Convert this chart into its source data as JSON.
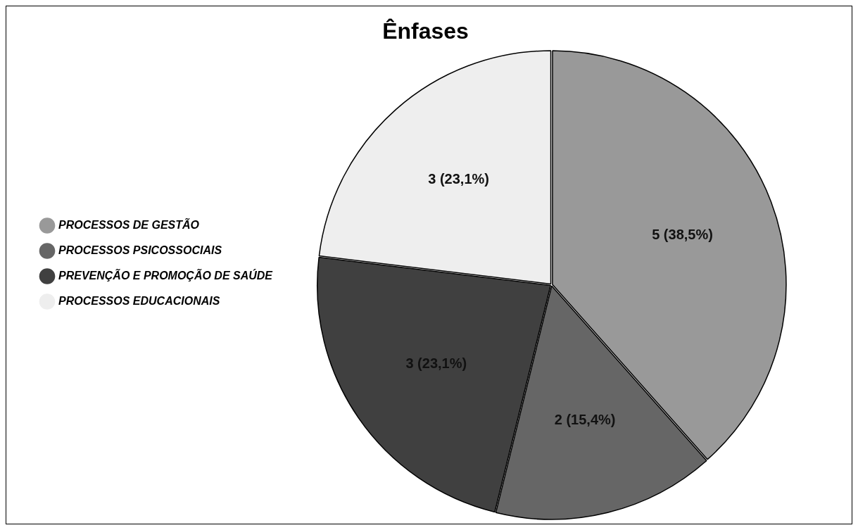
{
  "chart_data": {
    "type": "pie",
    "title": "Ênfases",
    "categories": [
      "PROCESSOS DE GESTÃO",
      "PROCESSOS PSICOSSOCIAIS",
      "PREVENÇÃO E PROMOÇÃO DE SAÚDE",
      "PROCESSOS EDUCACIONAIS"
    ],
    "values": [
      5,
      2,
      3,
      3
    ],
    "colors": [
      "#999999",
      "#666666",
      "#404040",
      "#eeeeee"
    ],
    "value_labels": [
      "5 (38,5%)",
      "2 (15,4%)",
      "3 (23,1%)",
      "3 (23,1%)"
    ],
    "legend": "left"
  }
}
